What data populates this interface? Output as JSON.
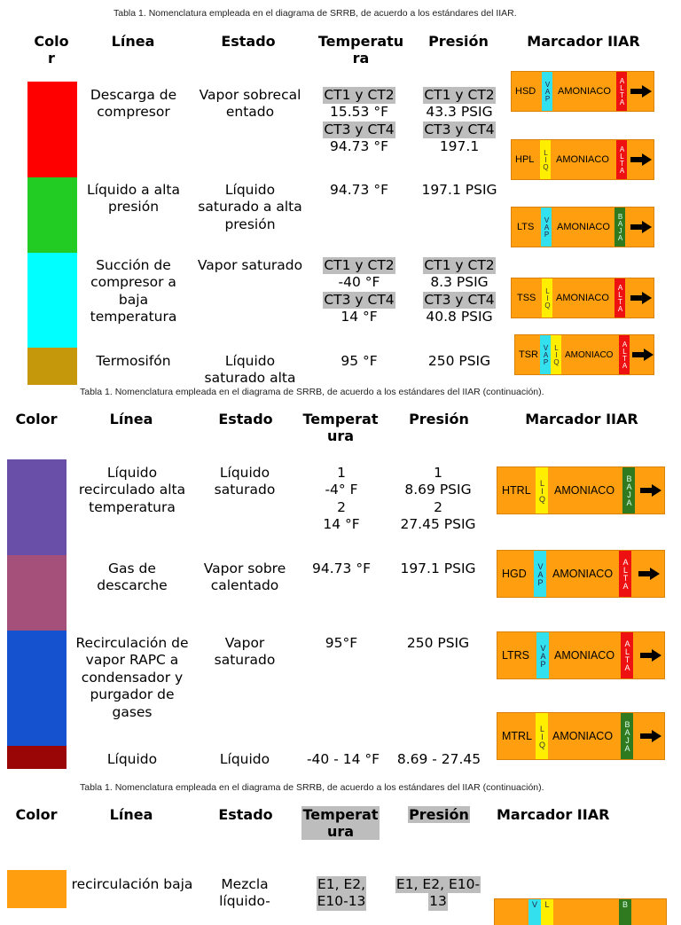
{
  "sections": [
    {
      "caption": "Tabla 1.  Nomenclatura empleada en el diagrama de SRRB, de acuerdo a los estándares del IIAR.",
      "headers": {
        "color": "Color",
        "linea": "Línea",
        "estado": "Estado",
        "temperatura": "Temperatura",
        "presion": "Presión",
        "marcador": "Marcador IIAR"
      },
      "rows": [
        {
          "linea": "Descarga de compresor",
          "estado": "Vapor sobrecalentado",
          "temperatura": [
            "CT1 y CT2",
            "15.53 °F",
            "CT3 y CT4",
            "94.73 °F"
          ],
          "presion": [
            "CT1 y CT2",
            "43.3 PSIG",
            "CT3 y CT4",
            "197.1"
          ]
        },
        {
          "linea": "Líquido a alta presión",
          "estado": "Líquido saturado a alta presión",
          "temperatura": [
            "94.73 °F"
          ],
          "presion": [
            "197.1  PSIG"
          ]
        },
        {
          "linea": "Succión de compresor a baja temperatura",
          "estado": "Vapor saturado",
          "temperatura": [
            "CT1 y CT2",
            "-40 °F",
            "CT3 y CT4",
            "14 °F"
          ],
          "presion": [
            "CT1 y CT2",
            "8.3 PSIG",
            "CT3 y CT4",
            "40.8 PSIG"
          ]
        },
        {
          "linea": "Termosifón",
          "estado": "Líquido saturado alta",
          "temperatura": [
            "95 °F"
          ],
          "presion": [
            "250 PSIG"
          ]
        }
      ]
    },
    {
      "caption": "Tabla 1.  Nomenclatura empleada en el diagrama de SRRB, de acuerdo a los estándares del IIAR (continuación).",
      "headers": {
        "color": "Color",
        "linea": "Línea",
        "estado": "Estado",
        "temperatura": "Temperatura",
        "presion": "Presión",
        "marcador": "Marcador IIAR"
      },
      "rows": [
        {
          "linea": "Líquido recirculado alta temperatura",
          "estado": "Líquido saturado",
          "temperatura": [
            "1",
            "-4° F",
            "2",
            "14 °F"
          ],
          "presion": [
            "1",
            "8.69 PSIG",
            "2",
            "27.45 PSIG"
          ]
        },
        {
          "linea": "Gas de descarche",
          "estado": "Vapor sobrecalentado",
          "temperatura": [
            "94.73 °F"
          ],
          "presion": [
            "197.1 PSIG"
          ]
        },
        {
          "linea": "Recirculación de vapor RAPC a condensador y purgador de gases",
          "estado": "Vapor saturado",
          "temperatura": [
            "95°F"
          ],
          "presion": [
            "250 PSIG"
          ]
        },
        {
          "linea": "Líquido",
          "estado": "Líquido",
          "temperatura": [
            "-40 - 14 °F"
          ],
          "presion": [
            "8.69 - 27.45"
          ]
        }
      ]
    },
    {
      "caption": "Tabla 1.  Nomenclatura empleada en el diagrama de SRRB, de acuerdo a los estándares del IIAR (continuación).",
      "headers": {
        "color": "Color",
        "linea": "Línea",
        "estado": "Estado",
        "temperatura": "Temperatura",
        "presion": "Presión",
        "marcador": "Marcador IIAR"
      },
      "rows": [
        {
          "linea": "recirculación baja",
          "estado": "Mezcla líquido-",
          "temperatura": [
            "E1, E2,",
            "E10-13"
          ],
          "presion": [
            "E1, E2, E10-",
            "13"
          ]
        }
      ]
    }
  ],
  "colors": {
    "red": "#ff0000",
    "green": "#22cc22",
    "cyan": "#00ffff",
    "gold": "#c4980a",
    "purple": "#6a4fa8",
    "mauve": "#a5507a",
    "blue": "#1552d0",
    "darkred": "#9a0505",
    "orange": "#ff9f0f",
    "marker_orange": "#ff9f0f"
  },
  "markers": [
    {
      "code": "HSD",
      "bands": [
        {
          "color": "cyan",
          "text": "VAP"
        }
      ],
      "name": "AMONIACO",
      "end": {
        "color": "red",
        "text": "ALTA"
      }
    },
    {
      "code": "HPL",
      "bands": [
        {
          "color": "yellow",
          "text": "LIQ"
        }
      ],
      "name": "AMONIACO",
      "end": {
        "color": "red",
        "text": "ALTA"
      }
    },
    {
      "code": "LTS",
      "bands": [
        {
          "color": "cyan",
          "text": "VAP"
        }
      ],
      "name": "AMONIACO",
      "end": {
        "color": "green",
        "text": "BAJA"
      }
    },
    {
      "code": "TSS",
      "bands": [
        {
          "color": "yellow",
          "text": "LIQ"
        }
      ],
      "name": "AMONIACO",
      "end": {
        "color": "red",
        "text": "ALTA"
      }
    },
    {
      "code": "TSR",
      "bands": [
        {
          "color": "cyan",
          "text": "VAP"
        },
        {
          "color": "yellow",
          "text": "LIQ"
        }
      ],
      "name": "AMONIACO",
      "end": {
        "color": "red",
        "text": "ALTA"
      }
    },
    {
      "code": "HTRL",
      "bands": [
        {
          "color": "yellow",
          "text": "LIQ"
        }
      ],
      "name": "AMONIACO",
      "end": {
        "color": "green",
        "text": "BAJA"
      }
    },
    {
      "code": "HGD",
      "bands": [
        {
          "color": "cyan",
          "text": "VAP"
        }
      ],
      "name": "AMONIACO",
      "end": {
        "color": "red",
        "text": "ALTA"
      }
    },
    {
      "code": "LTRS",
      "bands": [
        {
          "color": "cyan",
          "text": "VAP"
        }
      ],
      "name": "AMONIACO",
      "end": {
        "color": "red",
        "text": "ALTA"
      }
    },
    {
      "code": "MTRL",
      "bands": [
        {
          "color": "yellow",
          "text": "LIQ"
        }
      ],
      "name": "AMONIACO",
      "end": {
        "color": "green",
        "text": "BAJA"
      }
    },
    {
      "code": "",
      "bands": [
        {
          "color": "cyan",
          "text": "V"
        },
        {
          "color": "yellow",
          "text": "L"
        }
      ],
      "name": "",
      "end": {
        "color": "green",
        "text": "B"
      }
    }
  ]
}
